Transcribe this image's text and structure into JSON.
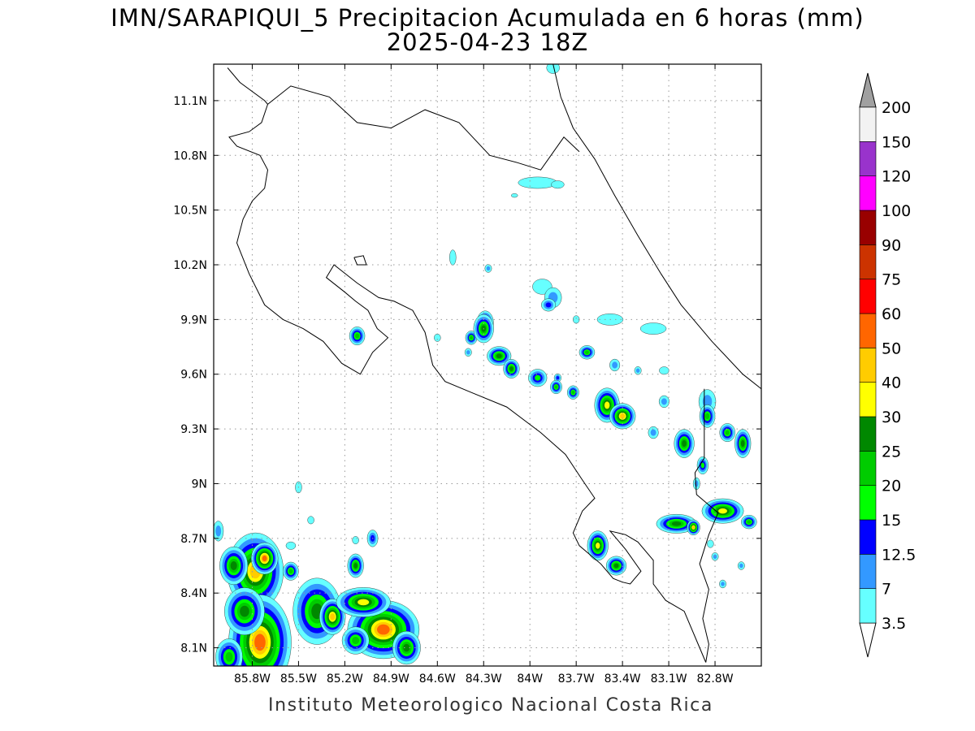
{
  "title_line1": "IMN/SARAPIQUI_5 Precipitacion Acumulada en 6 horas (mm)",
  "title_line2": "2025-04-23 18Z",
  "credit": "Instituto Meteorologico Nacional Costa Rica",
  "map": {
    "lon_range": [
      -86.05,
      -82.5
    ],
    "lat_range": [
      8.0,
      11.3
    ],
    "lon_ticks": [
      {
        "value": -85.8,
        "label": "85.8W"
      },
      {
        "value": -85.5,
        "label": "85.5W"
      },
      {
        "value": -85.2,
        "label": "85.2W"
      },
      {
        "value": -84.9,
        "label": "84.9W"
      },
      {
        "value": -84.6,
        "label": "84.6W"
      },
      {
        "value": -84.3,
        "label": "84.3W"
      },
      {
        "value": -84.0,
        "label": "84W"
      },
      {
        "value": -83.7,
        "label": "83.7W"
      },
      {
        "value": -83.4,
        "label": "83.4W"
      },
      {
        "value": -83.1,
        "label": "83.1W"
      },
      {
        "value": -82.8,
        "label": "82.8W"
      }
    ],
    "lat_ticks": [
      {
        "value": 8.1,
        "label": "8.1N"
      },
      {
        "value": 8.4,
        "label": "8.4N"
      },
      {
        "value": 8.7,
        "label": "8.7N"
      },
      {
        "value": 9.0,
        "label": "9N"
      },
      {
        "value": 9.3,
        "label": "9.3N"
      },
      {
        "value": 9.6,
        "label": "9.6N"
      },
      {
        "value": 9.9,
        "label": "9.9N"
      },
      {
        "value": 10.2,
        "label": "10.2N"
      },
      {
        "value": 10.5,
        "label": "10.5N"
      },
      {
        "value": 10.8,
        "label": "10.8N"
      },
      {
        "value": 11.1,
        "label": "11.1N"
      }
    ],
    "grid": true,
    "coastline": [
      [
        -85.96,
        11.28
      ],
      [
        -85.88,
        11.2
      ],
      [
        -85.72,
        11.1
      ],
      [
        -85.7,
        11.08
      ],
      [
        -85.74,
        10.98
      ],
      [
        -85.82,
        10.93
      ],
      [
        -85.95,
        10.9
      ],
      [
        -85.9,
        10.85
      ],
      [
        -85.75,
        10.8
      ],
      [
        -85.7,
        10.72
      ],
      [
        -85.72,
        10.62
      ],
      [
        -85.8,
        10.55
      ],
      [
        -85.86,
        10.45
      ],
      [
        -85.9,
        10.32
      ],
      [
        -85.82,
        10.15
      ],
      [
        -85.72,
        9.98
      ],
      [
        -85.6,
        9.9
      ],
      [
        -85.47,
        9.85
      ],
      [
        -85.34,
        9.78
      ],
      [
        -85.22,
        9.66
      ],
      [
        -85.1,
        9.6
      ],
      [
        -85.02,
        9.72
      ],
      [
        -84.92,
        9.8
      ],
      [
        -84.99,
        9.85
      ],
      [
        -85.05,
        9.95
      ],
      [
        -85.13,
        10.0
      ],
      [
        -85.2,
        10.05
      ],
      [
        -85.32,
        10.13
      ],
      [
        -85.27,
        10.2
      ],
      [
        -85.12,
        10.1
      ],
      [
        -84.98,
        10.02
      ],
      [
        -84.88,
        10.0
      ],
      [
        -84.76,
        9.95
      ],
      [
        -84.68,
        9.83
      ],
      [
        -84.63,
        9.65
      ],
      [
        -84.55,
        9.56
      ],
      [
        -84.38,
        9.5
      ],
      [
        -84.15,
        9.42
      ],
      [
        -83.93,
        9.28
      ],
      [
        -83.77,
        9.16
      ],
      [
        -83.66,
        9.02
      ],
      [
        -83.58,
        8.92
      ],
      [
        -83.66,
        8.85
      ],
      [
        -83.72,
        8.73
      ],
      [
        -83.68,
        8.66
      ],
      [
        -83.54,
        8.56
      ],
      [
        -83.46,
        8.48
      ],
      [
        -83.4,
        8.46
      ],
      [
        -83.35,
        8.45
      ],
      [
        -83.28,
        8.52
      ],
      [
        -83.38,
        8.64
      ],
      [
        -83.48,
        8.74
      ],
      [
        -83.38,
        8.72
      ],
      [
        -83.3,
        8.68
      ],
      [
        -83.2,
        8.58
      ],
      [
        -83.2,
        8.45
      ],
      [
        -83.12,
        8.36
      ],
      [
        -83.0,
        8.3
      ],
      [
        -82.9,
        8.1
      ],
      [
        -82.86,
        8.02
      ]
    ],
    "coastline_east": [
      [
        -83.85,
        11.3
      ],
      [
        -83.8,
        11.12
      ],
      [
        -83.72,
        10.95
      ],
      [
        -83.58,
        10.78
      ],
      [
        -83.45,
        10.58
      ],
      [
        -83.3,
        10.36
      ],
      [
        -83.15,
        10.15
      ],
      [
        -83.02,
        9.98
      ],
      [
        -82.82,
        9.78
      ],
      [
        -82.62,
        9.6
      ],
      [
        -82.5,
        9.52
      ]
    ],
    "border_nic": [
      [
        -85.7,
        11.08
      ],
      [
        -85.55,
        11.18
      ],
      [
        -85.3,
        11.12
      ],
      [
        -85.12,
        10.98
      ],
      [
        -84.9,
        10.95
      ],
      [
        -84.68,
        11.05
      ],
      [
        -84.46,
        10.98
      ],
      [
        -84.26,
        10.8
      ],
      [
        -84.08,
        10.76
      ],
      [
        -83.93,
        10.72
      ],
      [
        -83.78,
        10.9
      ],
      [
        -83.68,
        10.82
      ]
    ],
    "border_pan": [
      [
        -82.87,
        9.52
      ],
      [
        -82.87,
        9.14
      ],
      [
        -82.93,
        9.06
      ],
      [
        -82.92,
        8.94
      ],
      [
        -82.78,
        8.84
      ],
      [
        -82.84,
        8.72
      ],
      [
        -82.9,
        8.56
      ],
      [
        -82.84,
        8.42
      ],
      [
        -82.88,
        8.26
      ],
      [
        -82.84,
        8.12
      ],
      [
        -82.86,
        8.02
      ]
    ],
    "island": [
      [
        -85.14,
        10.24
      ],
      [
        -85.08,
        10.25
      ],
      [
        -85.06,
        10.2
      ],
      [
        -85.12,
        10.2
      ],
      [
        -85.14,
        10.24
      ]
    ],
    "precip_cells": [
      {
        "lon": -85.78,
        "lat": 8.52,
        "rx": 0.13,
        "ry": 0.15,
        "v": 42
      },
      {
        "lon": -85.72,
        "lat": 8.59,
        "rx": 0.06,
        "ry": 0.06,
        "v": 55
      },
      {
        "lon": -85.92,
        "lat": 8.55,
        "rx": 0.07,
        "ry": 0.08,
        "v": 25
      },
      {
        "lon": -85.75,
        "lat": 8.13,
        "rx": 0.14,
        "ry": 0.18,
        "v": 52
      },
      {
        "lon": -85.85,
        "lat": 8.3,
        "rx": 0.1,
        "ry": 0.1,
        "v": 25
      },
      {
        "lon": -85.95,
        "lat": 8.05,
        "rx": 0.07,
        "ry": 0.08,
        "v": 22
      },
      {
        "lon": -85.38,
        "lat": 8.3,
        "rx": 0.12,
        "ry": 0.14,
        "v": 28
      },
      {
        "lon": -85.28,
        "lat": 8.27,
        "rx": 0.06,
        "ry": 0.07,
        "v": 40
      },
      {
        "lon": -84.95,
        "lat": 8.2,
        "rx": 0.16,
        "ry": 0.11,
        "v": 58
      },
      {
        "lon": -85.08,
        "lat": 8.35,
        "rx": 0.13,
        "ry": 0.06,
        "v": 35
      },
      {
        "lon": -84.8,
        "lat": 8.1,
        "rx": 0.07,
        "ry": 0.07,
        "v": 25
      },
      {
        "lon": -85.13,
        "lat": 8.14,
        "rx": 0.07,
        "ry": 0.06,
        "v": 22
      },
      {
        "lon": -85.13,
        "lat": 8.55,
        "rx": 0.04,
        "ry": 0.05,
        "v": 25
      },
      {
        "lon": -85.02,
        "lat": 8.7,
        "rx": 0.03,
        "ry": 0.04,
        "v": 13
      },
      {
        "lon": -85.55,
        "lat": 8.52,
        "rx": 0.04,
        "ry": 0.04,
        "v": 22
      },
      {
        "lon": -85.12,
        "lat": 9.81,
        "rx": 0.04,
        "ry": 0.04,
        "v": 20
      },
      {
        "lon": -84.29,
        "lat": 9.88,
        "rx": 0.04,
        "ry": 0.05,
        "v": 38
      },
      {
        "lon": -84.2,
        "lat": 9.7,
        "rx": 0.06,
        "ry": 0.04,
        "v": 25
      },
      {
        "lon": -84.12,
        "lat": 9.63,
        "rx": 0.04,
        "ry": 0.04,
        "v": 25
      },
      {
        "lon": -83.95,
        "lat": 9.58,
        "rx": 0.05,
        "ry": 0.04,
        "v": 18
      },
      {
        "lon": -83.82,
        "lat": 9.58,
        "rx": 0.02,
        "ry": 0.02,
        "v": 13
      },
      {
        "lon": -83.88,
        "lat": 9.98,
        "rx": 0.04,
        "ry": 0.03,
        "v": 13
      },
      {
        "lon": -84.38,
        "lat": 9.8,
        "rx": 0.03,
        "ry": 0.03,
        "v": 22
      },
      {
        "lon": -83.63,
        "lat": 9.72,
        "rx": 0.04,
        "ry": 0.03,
        "v": 22
      },
      {
        "lon": -83.5,
        "lat": 9.43,
        "rx": 0.06,
        "ry": 0.07,
        "v": 35
      },
      {
        "lon": -83.4,
        "lat": 9.37,
        "rx": 0.06,
        "ry": 0.05,
        "v": 42
      },
      {
        "lon": -83.0,
        "lat": 9.22,
        "rx": 0.05,
        "ry": 0.06,
        "v": 25
      },
      {
        "lon": -82.85,
        "lat": 9.37,
        "rx": 0.04,
        "ry": 0.05,
        "v": 22
      },
      {
        "lon": -82.72,
        "lat": 9.28,
        "rx": 0.04,
        "ry": 0.04,
        "v": 22
      },
      {
        "lon": -82.62,
        "lat": 9.22,
        "rx": 0.04,
        "ry": 0.06,
        "v": 25
      },
      {
        "lon": -82.75,
        "lat": 8.85,
        "rx": 0.1,
        "ry": 0.05,
        "v": 32
      },
      {
        "lon": -82.58,
        "lat": 8.79,
        "rx": 0.04,
        "ry": 0.03,
        "v": 22
      },
      {
        "lon": -83.05,
        "lat": 8.78,
        "rx": 0.1,
        "ry": 0.04,
        "v": 28
      },
      {
        "lon": -82.94,
        "lat": 8.76,
        "rx": 0.03,
        "ry": 0.03,
        "v": 40
      },
      {
        "lon": -83.56,
        "lat": 8.66,
        "rx": 0.05,
        "ry": 0.06,
        "v": 35
      },
      {
        "lon": -83.44,
        "lat": 8.55,
        "rx": 0.05,
        "ry": 0.04,
        "v": 25
      },
      {
        "lon": -82.88,
        "lat": 9.1,
        "rx": 0.03,
        "ry": 0.04,
        "v": 18
      },
      {
        "lon": -83.72,
        "lat": 9.5,
        "rx": 0.03,
        "ry": 0.03,
        "v": 22
      },
      {
        "lon": -83.83,
        "lat": 9.53,
        "rx": 0.03,
        "ry": 0.03,
        "v": 22
      },
      {
        "lon": -84.3,
        "lat": 9.85,
        "rx": 0.05,
        "ry": 0.06,
        "v": 28
      }
    ],
    "light_cells": [
      {
        "lon": -83.95,
        "lat": 10.65,
        "rx": 0.12,
        "ry": 0.03,
        "v": 4
      },
      {
        "lon": -83.82,
        "lat": 10.64,
        "rx": 0.04,
        "ry": 0.02,
        "v": 5
      },
      {
        "lon": -84.5,
        "lat": 10.24,
        "rx": 0.02,
        "ry": 0.04,
        "v": 4
      },
      {
        "lon": -84.27,
        "lat": 10.18,
        "rx": 0.02,
        "ry": 0.02,
        "v": 8
      },
      {
        "lon": -83.92,
        "lat": 10.08,
        "rx": 0.06,
        "ry": 0.04,
        "v": 5
      },
      {
        "lon": -83.85,
        "lat": 10.02,
        "rx": 0.05,
        "ry": 0.05,
        "v": 8
      },
      {
        "lon": -83.7,
        "lat": 9.9,
        "rx": 0.02,
        "ry": 0.02,
        "v": 4
      },
      {
        "lon": -83.48,
        "lat": 9.9,
        "rx": 0.08,
        "ry": 0.03,
        "v": 5
      },
      {
        "lon": -83.2,
        "lat": 9.85,
        "rx": 0.08,
        "ry": 0.03,
        "v": 5
      },
      {
        "lon": -83.45,
        "lat": 9.65,
        "rx": 0.03,
        "ry": 0.03,
        "v": 8
      },
      {
        "lon": -83.3,
        "lat": 9.62,
        "rx": 0.02,
        "ry": 0.02,
        "v": 8
      },
      {
        "lon": -83.13,
        "lat": 9.62,
        "rx": 0.03,
        "ry": 0.02,
        "v": 5
      },
      {
        "lon": -83.13,
        "lat": 9.45,
        "rx": 0.03,
        "ry": 0.03,
        "v": 8
      },
      {
        "lon": -83.2,
        "lat": 9.28,
        "rx": 0.03,
        "ry": 0.03,
        "v": 8
      },
      {
        "lon": -82.85,
        "lat": 9.45,
        "rx": 0.05,
        "ry": 0.06,
        "v": 8
      },
      {
        "lon": -82.92,
        "lat": 9.0,
        "rx": 0.02,
        "ry": 0.03,
        "v": 8
      },
      {
        "lon": -82.83,
        "lat": 8.67,
        "rx": 0.02,
        "ry": 0.02,
        "v": 4
      },
      {
        "lon": -82.8,
        "lat": 8.6,
        "rx": 0.02,
        "ry": 0.02,
        "v": 8
      },
      {
        "lon": -82.75,
        "lat": 8.45,
        "rx": 0.02,
        "ry": 0.02,
        "v": 8
      },
      {
        "lon": -82.63,
        "lat": 8.55,
        "rx": 0.02,
        "ry": 0.02,
        "v": 8
      },
      {
        "lon": -85.5,
        "lat": 8.98,
        "rx": 0.02,
        "ry": 0.03,
        "v": 4
      },
      {
        "lon": -85.42,
        "lat": 8.8,
        "rx": 0.02,
        "ry": 0.02,
        "v": 5
      },
      {
        "lon": -85.13,
        "lat": 8.69,
        "rx": 0.02,
        "ry": 0.02,
        "v": 4
      },
      {
        "lon": -85.55,
        "lat": 8.66,
        "rx": 0.03,
        "ry": 0.02,
        "v": 4
      },
      {
        "lon": -86.02,
        "lat": 8.74,
        "rx": 0.03,
        "ry": 0.05,
        "v": 8
      },
      {
        "lon": -84.6,
        "lat": 9.8,
        "rx": 0.02,
        "ry": 0.02,
        "v": 4
      },
      {
        "lon": -84.4,
        "lat": 9.72,
        "rx": 0.02,
        "ry": 0.02,
        "v": 8
      },
      {
        "lon": -83.85,
        "lat": 11.28,
        "rx": 0.04,
        "ry": 0.03,
        "v": 5
      },
      {
        "lon": -84.1,
        "lat": 10.58,
        "rx": 0.02,
        "ry": 0.01,
        "v": 4
      }
    ]
  },
  "colorbar": {
    "levels": [
      {
        "label": "3.5",
        "color": "#66ffff"
      },
      {
        "label": "7",
        "color": "#3399ff"
      },
      {
        "label": "12.5",
        "color": "#0000ff"
      },
      {
        "label": "15",
        "color": "#00ff00"
      },
      {
        "label": "20",
        "color": "#00cc00"
      },
      {
        "label": "25",
        "color": "#008800"
      },
      {
        "label": "30",
        "color": "#ffff00"
      },
      {
        "label": "40",
        "color": "#ffcc00"
      },
      {
        "label": "50",
        "color": "#ff6600"
      },
      {
        "label": "60",
        "color": "#ff0000"
      },
      {
        "label": "75",
        "color": "#cc3300"
      },
      {
        "label": "90",
        "color": "#990000"
      },
      {
        "label": "100",
        "color": "#ff00ff"
      },
      {
        "label": "120",
        "color": "#9933cc"
      },
      {
        "label": "150",
        "color": "#f2f2f2"
      },
      {
        "label": "200",
        "color": "#a0a0a0"
      }
    ],
    "under_color": "#ffffff",
    "over_color": "#a0a0a0"
  }
}
